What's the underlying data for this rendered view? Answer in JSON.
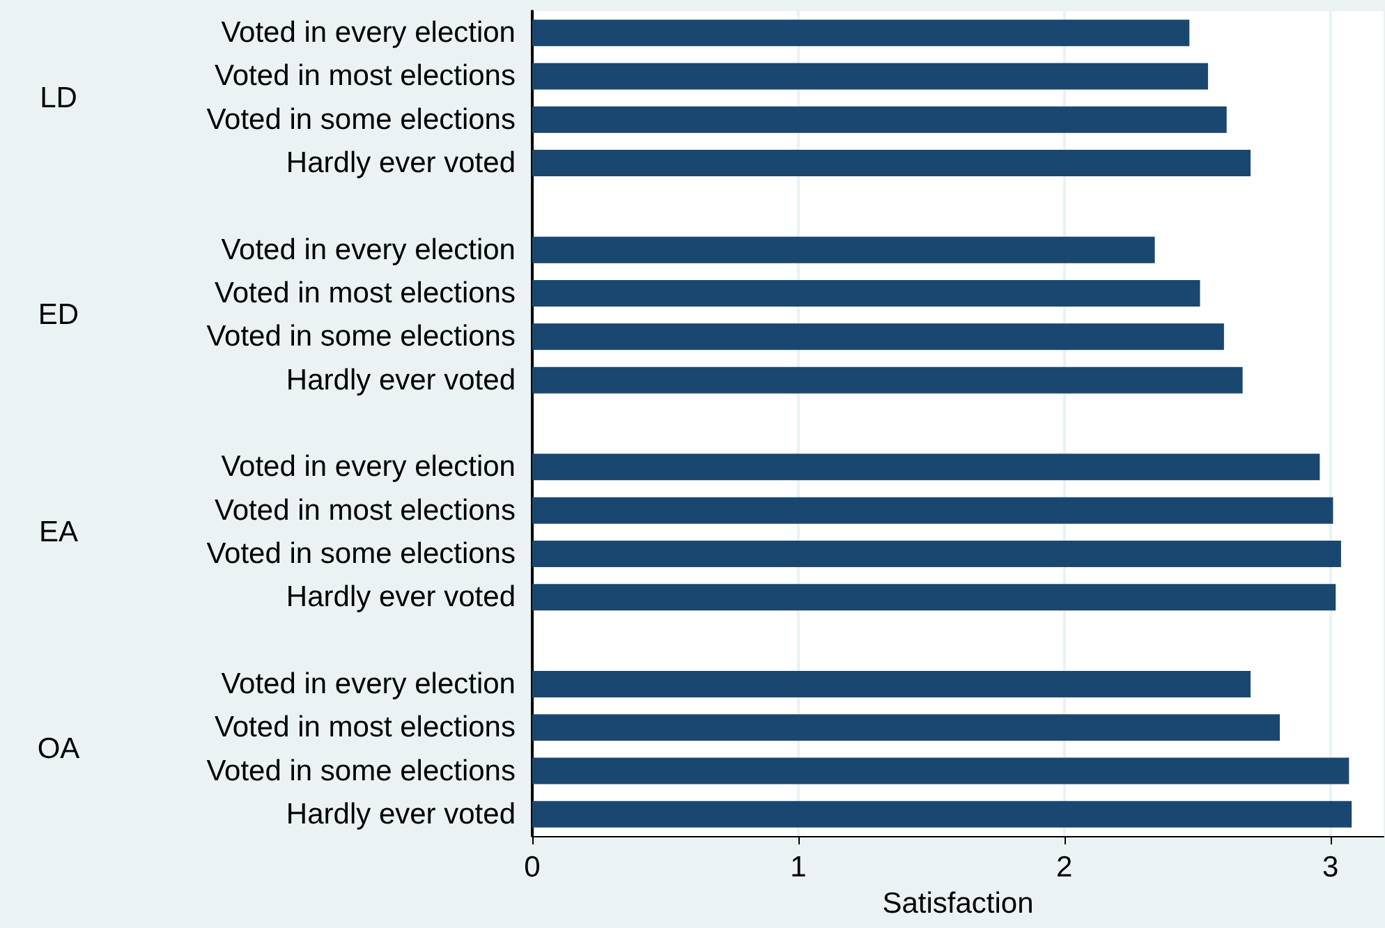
{
  "chart_data": {
    "type": "bar",
    "orientation": "horizontal",
    "xlabel": "Satisfaction",
    "categories": [
      "Voted in every election",
      "Voted in most elections",
      "Voted in some elections",
      "Hardly ever voted",
      null,
      "Voted in every election",
      "Voted in most elections",
      "Voted in some elections",
      "Hardly ever voted",
      null,
      "Voted in every election",
      "Voted in most elections",
      "Voted in some elections",
      "Hardly ever voted",
      null,
      "Voted in every election",
      "Voted in most elections",
      "Voted in some elections",
      "Hardly ever voted"
    ],
    "values": [
      2.47,
      2.54,
      2.61,
      2.7,
      null,
      2.34,
      2.51,
      2.6,
      2.67,
      null,
      2.96,
      3.01,
      3.04,
      3.02,
      null,
      2.7,
      2.81,
      3.07,
      3.08
    ],
    "color": "#1a476f",
    "xlim": [
      0,
      3.2
    ],
    "xticks": [
      0,
      1,
      2,
      3
    ],
    "grid": "x",
    "annotations": [
      "LD",
      "ED",
      "EA",
      "OA"
    ]
  }
}
